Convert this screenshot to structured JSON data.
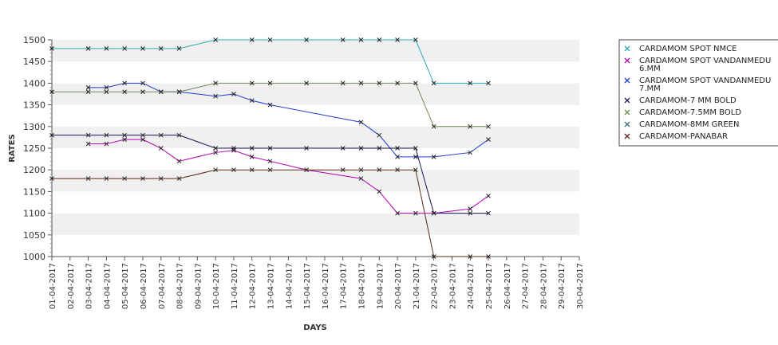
{
  "chart_data": {
    "type": "line",
    "title": "",
    "xlabel": "DAYS",
    "ylabel": "RATES",
    "ylim": [
      1000,
      1500
    ],
    "yticks": [
      1000,
      1050,
      1100,
      1150,
      1200,
      1250,
      1300,
      1350,
      1400,
      1450,
      1500
    ],
    "grid": "horizontal alternating bands",
    "legend_position": "right",
    "categories": [
      "01-04-2017",
      "02-04-2017",
      "03-04-2017",
      "04-04-2017",
      "05-04-2017",
      "06-04-2017",
      "07-04-2017",
      "08-04-2017",
      "09-04-2017",
      "10-04-2017",
      "11-04-2017",
      "12-04-2017",
      "13-04-2017",
      "14-04-2017",
      "15-04-2017",
      "16-04-2017",
      "17-04-2017",
      "18-04-2017",
      "19-04-2017",
      "20-04-2017",
      "21-04-2017",
      "22-04-2017",
      "23-04-2017",
      "24-04-2017",
      "25-04-2017",
      "26-04-2017",
      "27-04-2017",
      "28-04-2017",
      "29-04-2017",
      "30-04-2017"
    ],
    "series": [
      {
        "name": "CARDAMOM SPOT NMCE",
        "color": "#2aa9b6",
        "points": [
          [
            "01-04-2017",
            1480
          ],
          [
            "03-04-2017",
            1480
          ],
          [
            "04-04-2017",
            1480
          ],
          [
            "05-04-2017",
            1480
          ],
          [
            "06-04-2017",
            1480
          ],
          [
            "07-04-2017",
            1480
          ],
          [
            "08-04-2017",
            1480
          ],
          [
            "10-04-2017",
            1500
          ],
          [
            "12-04-2017",
            1500
          ],
          [
            "13-04-2017",
            1500
          ],
          [
            "15-04-2017",
            1500
          ],
          [
            "17-04-2017",
            1500
          ],
          [
            "18-04-2017",
            1500
          ],
          [
            "19-04-2017",
            1500
          ],
          [
            "20-04-2017",
            1500
          ],
          [
            "21-04-2017",
            1500
          ],
          [
            "22-04-2017",
            1400
          ],
          [
            "24-04-2017",
            1400
          ],
          [
            "25-04-2017",
            1400
          ]
        ]
      },
      {
        "name": "CARDAMOM SPOT VANDANMEDU 6.MM",
        "legend_lines": [
          "CARDAMOM SPOT VANDANMEDU",
          "6.MM"
        ],
        "color": "#b400b4",
        "points": [
          [
            "03-04-2017",
            1260
          ],
          [
            "04-04-2017",
            1260
          ],
          [
            "05-04-2017",
            1270
          ],
          [
            "06-04-2017",
            1270
          ],
          [
            "07-04-2017",
            1250
          ],
          [
            "08-04-2017",
            1220
          ],
          [
            "10-04-2017",
            1240
          ],
          [
            "11-04-2017",
            1245
          ],
          [
            "12-04-2017",
            1230
          ],
          [
            "13-04-2017",
            1220
          ],
          [
            "15-04-2017",
            1200
          ],
          [
            "18-04-2017",
            1180
          ],
          [
            "19-04-2017",
            1150
          ],
          [
            "20-04-2017",
            1100
          ],
          [
            "21-04-2017",
            1100
          ],
          [
            "22-04-2017",
            1100
          ],
          [
            "24-04-2017",
            1110
          ],
          [
            "25-04-2017",
            1140
          ]
        ]
      },
      {
        "name": "CARDAMOM SPOT VANDANMEDU 7.MM",
        "legend_lines": [
          "CARDAMOM SPOT VANDANMEDU",
          "7.MM"
        ],
        "color": "#1e3cc8",
        "points": [
          [
            "03-04-2017",
            1390
          ],
          [
            "04-04-2017",
            1390
          ],
          [
            "05-04-2017",
            1400
          ],
          [
            "06-04-2017",
            1400
          ],
          [
            "07-04-2017",
            1380
          ],
          [
            "08-04-2017",
            1380
          ],
          [
            "10-04-2017",
            1370
          ],
          [
            "11-04-2017",
            1375
          ],
          [
            "12-04-2017",
            1360
          ],
          [
            "13-04-2017",
            1350
          ],
          [
            "18-04-2017",
            1310
          ],
          [
            "19-04-2017",
            1280
          ],
          [
            "20-04-2017",
            1230
          ],
          [
            "21-04-2017",
            1230
          ],
          [
            "22-04-2017",
            1230
          ],
          [
            "24-04-2017",
            1240
          ],
          [
            "25-04-2017",
            1270
          ]
        ]
      },
      {
        "name": "CARDAMOM-7 MM BOLD",
        "color": "#141450",
        "points": [
          [
            "01-04-2017",
            1280
          ],
          [
            "03-04-2017",
            1280
          ],
          [
            "04-04-2017",
            1280
          ],
          [
            "05-04-2017",
            1280
          ],
          [
            "06-04-2017",
            1280
          ],
          [
            "07-04-2017",
            1280
          ],
          [
            "08-04-2017",
            1280
          ],
          [
            "10-04-2017",
            1250
          ],
          [
            "11-04-2017",
            1250
          ],
          [
            "12-04-2017",
            1250
          ],
          [
            "13-04-2017",
            1250
          ],
          [
            "15-04-2017",
            1250
          ],
          [
            "17-04-2017",
            1250
          ],
          [
            "18-04-2017",
            1250
          ],
          [
            "19-04-2017",
            1250
          ],
          [
            "20-04-2017",
            1250
          ],
          [
            "21-04-2017",
            1250
          ],
          [
            "22-04-2017",
            1100
          ],
          [
            "24-04-2017",
            1100
          ],
          [
            "25-04-2017",
            1100
          ]
        ]
      },
      {
        "name": "CARDAMOM-7.5MM BOLD",
        "color": "#6e8c50",
        "points": [
          [
            "01-04-2017",
            1380
          ],
          [
            "03-04-2017",
            1380
          ],
          [
            "04-04-2017",
            1380
          ],
          [
            "05-04-2017",
            1380
          ],
          [
            "06-04-2017",
            1380
          ],
          [
            "07-04-2017",
            1380
          ],
          [
            "08-04-2017",
            1380
          ],
          [
            "10-04-2017",
            1400
          ],
          [
            "12-04-2017",
            1400
          ],
          [
            "13-04-2017",
            1400
          ],
          [
            "15-04-2017",
            1400
          ],
          [
            "17-04-2017",
            1400
          ],
          [
            "18-04-2017",
            1400
          ],
          [
            "19-04-2017",
            1400
          ],
          [
            "20-04-2017",
            1400
          ],
          [
            "21-04-2017",
            1400
          ],
          [
            "22-04-2017",
            1300
          ],
          [
            "24-04-2017",
            1300
          ],
          [
            "25-04-2017",
            1300
          ]
        ]
      },
      {
        "name": "CARDAMOM-8MM GREEN",
        "color": "#3c6e82",
        "points": []
      },
      {
        "name": "CARDAMOM-PANABAR",
        "color": "#5a2814",
        "points": [
          [
            "01-04-2017",
            1180
          ],
          [
            "03-04-2017",
            1180
          ],
          [
            "04-04-2017",
            1180
          ],
          [
            "05-04-2017",
            1180
          ],
          [
            "06-04-2017",
            1180
          ],
          [
            "07-04-2017",
            1180
          ],
          [
            "08-04-2017",
            1180
          ],
          [
            "10-04-2017",
            1200
          ],
          [
            "11-04-2017",
            1200
          ],
          [
            "12-04-2017",
            1200
          ],
          [
            "13-04-2017",
            1200
          ],
          [
            "15-04-2017",
            1200
          ],
          [
            "17-04-2017",
            1200
          ],
          [
            "18-04-2017",
            1200
          ],
          [
            "19-04-2017",
            1200
          ],
          [
            "20-04-2017",
            1200
          ],
          [
            "21-04-2017",
            1200
          ],
          [
            "22-04-2017",
            1000
          ],
          [
            "24-04-2017",
            1000
          ],
          [
            "25-04-2017",
            1000
          ]
        ]
      }
    ]
  }
}
